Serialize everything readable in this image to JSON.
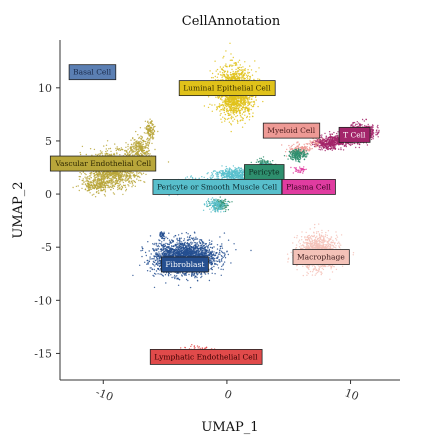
{
  "chart_data": {
    "type": "scatter",
    "title": "CellAnnotation",
    "xlabel": "UMAP_1",
    "ylabel": "UMAP_2",
    "xlim": [
      -13.5,
      14
    ],
    "ylim": [
      -17.5,
      14.5
    ],
    "x_ticks": [
      -10,
      0,
      10
    ],
    "x_tick_labels": [
      "-10",
      "0",
      "10"
    ],
    "y_ticks": [
      10,
      5,
      0,
      -5,
      -10,
      -15
    ],
    "y_tick_labels": [
      "10",
      "5",
      "0",
      "-5",
      "-10",
      "-15"
    ],
    "grid": false,
    "legend": "none",
    "clusters": [
      {
        "name": "Basal Cell",
        "color": "#5b7fb3",
        "label_color": "#1a2a4a",
        "label_xy": [
          -10.9,
          11.5
        ]
      },
      {
        "name": "Luminal Epithelial Cell",
        "color": "#e0c21a",
        "label_color": "#3a3000",
        "label_xy": [
          0.0,
          10.0
        ]
      },
      {
        "name": "Myeloid Cell",
        "color": "#ee9a95",
        "label_color": "#4a1a1a",
        "label_xy": [
          5.2,
          6.0
        ]
      },
      {
        "name": "T Cell",
        "color": "#a3256a",
        "label_color": "#ffffff",
        "label_xy": [
          10.3,
          5.6
        ]
      },
      {
        "name": "Vascular Endothelial Cell",
        "color": "#b8a63a",
        "label_color": "#2e2800",
        "label_xy": [
          -10.0,
          2.9
        ]
      },
      {
        "name": "Pericyte",
        "color": "#2e8f6e",
        "label_color": "#0c2a20",
        "label_xy": [
          3.0,
          2.1
        ]
      },
      {
        "name": "Pericyte or Smooth Muscle Cell",
        "color": "#58bfcc",
        "label_color": "#0c2a30",
        "label_xy": [
          -0.8,
          0.7
        ]
      },
      {
        "name": "Plasma Cell",
        "color": "#e03ca0",
        "label_color": "#3a0020",
        "label_xy": [
          6.6,
          0.7
        ]
      },
      {
        "name": "Fibroblast",
        "color": "#254f90",
        "label_color": "#ffffff",
        "label_xy": [
          -3.4,
          -6.6
        ]
      },
      {
        "name": "Macrophage",
        "color": "#f4c2b8",
        "label_color": "#3a1a1a",
        "label_xy": [
          7.6,
          -5.9
        ]
      },
      {
        "name": "Lymphatic Endothelial Cell",
        "color": "#e04a4a",
        "label_color": "#3a0000",
        "label_xy": [
          -1.7,
          -15.3
        ]
      }
    ]
  }
}
